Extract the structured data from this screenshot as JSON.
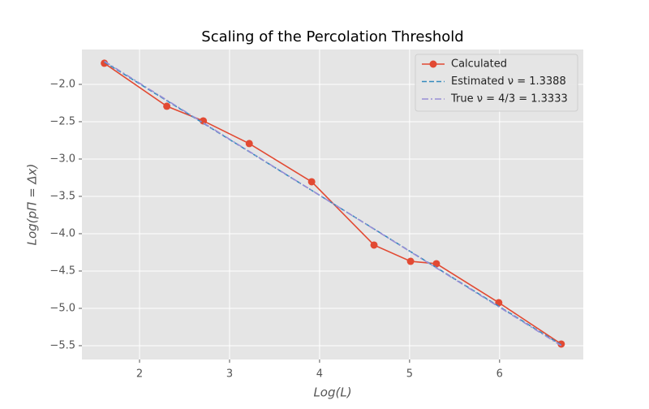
{
  "chart_data": {
    "type": "line",
    "title": "Scaling of the Percolation Threshold",
    "xlabel": "Log(L)",
    "ylabel": "Log(pΠ = Δx)",
    "xlim": [
      1.36,
      6.93
    ],
    "ylim": [
      -5.685,
      -1.533
    ],
    "xticks": [
      2,
      3,
      4,
      5,
      6
    ],
    "yticks": [
      {
        "value": -2.0,
        "label": "−2.0"
      },
      {
        "value": -2.5,
        "label": "−2.5"
      },
      {
        "value": -3.0,
        "label": "−3.0"
      },
      {
        "value": -3.5,
        "label": "−3.5"
      },
      {
        "value": -4.0,
        "label": "−4.0"
      },
      {
        "value": -4.5,
        "label": "−4.5"
      },
      {
        "value": -5.0,
        "label": "−5.0"
      },
      {
        "value": -5.5,
        "label": "−5.5"
      }
    ],
    "grid": true,
    "legend": "upper right",
    "series": [
      {
        "name": "Calculated",
        "color": "#E24A33",
        "style": "solid",
        "marker": true,
        "x": [
          1.609,
          2.303,
          2.708,
          3.219,
          3.912,
          4.605,
          5.011,
          5.298,
          5.991,
          6.685
        ],
        "values": [
          -1.717,
          -2.293,
          -2.489,
          -2.793,
          -3.304,
          -4.152,
          -4.37,
          -4.402,
          -4.924,
          -5.478
        ]
      },
      {
        "name": "Estimated ν = 1.3388",
        "color": "#348ABD",
        "style": "dashed",
        "marker": false,
        "x": [
          1.609,
          6.685
        ],
        "values": [
          -1.7,
          -5.49
        ]
      },
      {
        "name": "True ν = 4/3 = 1.3333",
        "color": "#988ED5",
        "style": "dashdot",
        "marker": false,
        "x": [
          1.609,
          6.685
        ],
        "values": [
          -1.69,
          -5.5
        ]
      }
    ]
  }
}
